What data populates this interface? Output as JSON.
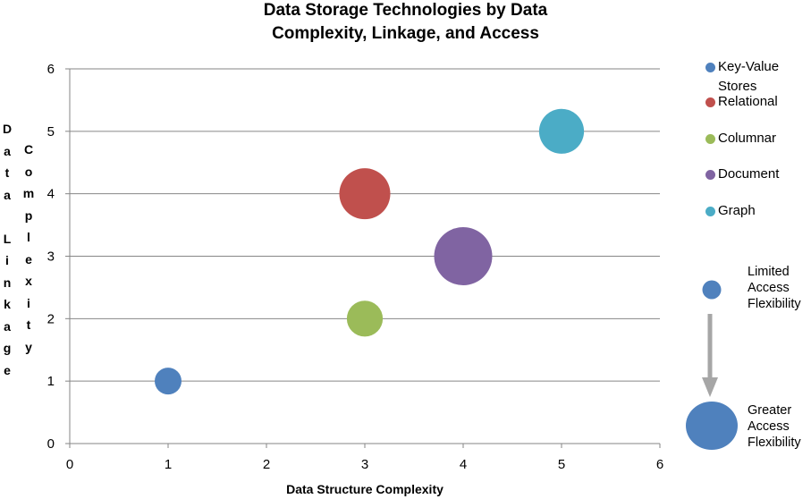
{
  "title_lines": [
    "Data Storage Technologies by Data",
    "Complexity, Linkage, and Access"
  ],
  "chart_data": {
    "type": "bubble",
    "xlabel": "Data Structure Complexity",
    "ylabel_columns": [
      "Data Linkage",
      "Complexity"
    ],
    "xlim": [
      0,
      6
    ],
    "ylim": [
      0,
      6
    ],
    "xticks": [
      "0",
      "1",
      "2",
      "3",
      "4",
      "5",
      "6"
    ],
    "yticks": [
      "0",
      "1",
      "2",
      "3",
      "4",
      "5",
      "6"
    ],
    "grid": "horizontal",
    "legend_position": "right",
    "series": [
      {
        "name_lines": [
          "Key-Value",
          "Stores"
        ],
        "x": 1,
        "y": 1,
        "size": 1,
        "color": "#4f81bd"
      },
      {
        "name_lines": [
          "Relational"
        ],
        "x": 3,
        "y": 4,
        "size": 3.6,
        "color": "#c0504d"
      },
      {
        "name_lines": [
          "Columnar"
        ],
        "x": 3,
        "y": 2,
        "size": 1.8,
        "color": "#9bbb59"
      },
      {
        "name_lines": [
          "Document"
        ],
        "x": 4,
        "y": 3,
        "size": 4.7,
        "color": "#8064a2"
      },
      {
        "name_lines": [
          "Graph"
        ],
        "x": 5,
        "y": 5,
        "size": 2.8,
        "color": "#4bacc6"
      }
    ],
    "size_legend": {
      "small_label_lines": [
        "Limited",
        "Access",
        "Flexibility"
      ],
      "large_label_lines": [
        "Greater",
        "Access",
        "Flexibility"
      ],
      "color": "#4f81bd",
      "arrow_color": "#a6a6a6"
    }
  }
}
